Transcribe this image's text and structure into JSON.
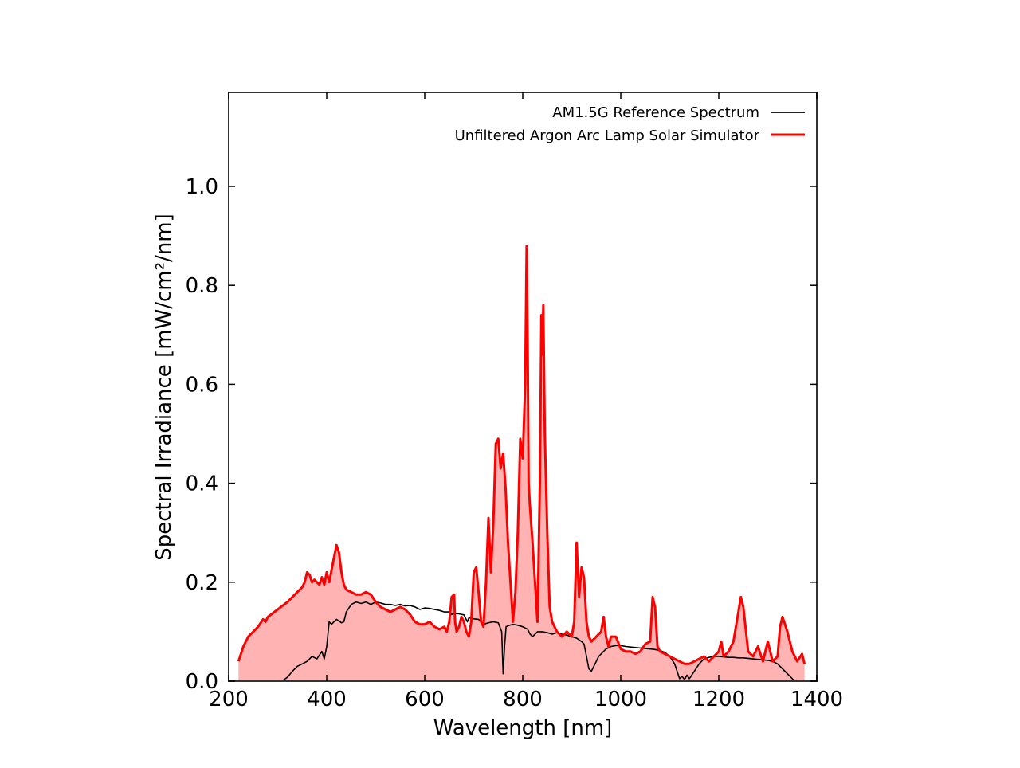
{
  "chart_data": {
    "type": "line",
    "title": "",
    "xlabel": "Wavelength [nm]",
    "ylabel": "Spectral Irradiance [mW/cm²/nm]",
    "xlim": [
      200,
      1400
    ],
    "ylim": [
      0,
      1.19
    ],
    "x_ticks": [
      200,
      400,
      600,
      800,
      1000,
      1200,
      1400
    ],
    "y_ticks": [
      0.0,
      0.2,
      0.4,
      0.6,
      0.8,
      1.0
    ],
    "x_tick_labels": [
      "200",
      "400",
      "600",
      "800",
      "1000",
      "1200",
      "1400"
    ],
    "y_tick_labels": [
      "0.0",
      "0.2",
      "0.4",
      "0.6",
      "0.8",
      "1.0"
    ],
    "grid": false,
    "legend_position": "top-right",
    "series": [
      {
        "name": "AM1.5G Reference Spectrum",
        "color": "#000000",
        "fill": false,
        "points": [
          [
            280,
            0.0
          ],
          [
            300,
            0.0
          ],
          [
            310,
            0.001
          ],
          [
            320,
            0.008
          ],
          [
            330,
            0.02
          ],
          [
            340,
            0.03
          ],
          [
            350,
            0.035
          ],
          [
            360,
            0.04
          ],
          [
            370,
            0.05
          ],
          [
            380,
            0.045
          ],
          [
            390,
            0.06
          ],
          [
            395,
            0.045
          ],
          [
            400,
            0.07
          ],
          [
            405,
            0.12
          ],
          [
            410,
            0.115
          ],
          [
            415,
            0.12
          ],
          [
            420,
            0.125
          ],
          [
            430,
            0.118
          ],
          [
            435,
            0.12
          ],
          [
            440,
            0.14
          ],
          [
            450,
            0.155
          ],
          [
            460,
            0.16
          ],
          [
            470,
            0.157
          ],
          [
            480,
            0.16
          ],
          [
            490,
            0.155
          ],
          [
            500,
            0.16
          ],
          [
            510,
            0.158
          ],
          [
            520,
            0.155
          ],
          [
            530,
            0.155
          ],
          [
            540,
            0.153
          ],
          [
            550,
            0.155
          ],
          [
            560,
            0.152
          ],
          [
            570,
            0.153
          ],
          [
            580,
            0.15
          ],
          [
            590,
            0.145
          ],
          [
            600,
            0.148
          ],
          [
            610,
            0.147
          ],
          [
            620,
            0.145
          ],
          [
            630,
            0.143
          ],
          [
            640,
            0.14
          ],
          [
            650,
            0.14
          ],
          [
            655,
            0.135
          ],
          [
            660,
            0.137
          ],
          [
            670,
            0.136
          ],
          [
            680,
            0.134
          ],
          [
            687,
            0.12
          ],
          [
            690,
            0.128
          ],
          [
            700,
            0.126
          ],
          [
            710,
            0.125
          ],
          [
            720,
            0.115
          ],
          [
            730,
            0.118
          ],
          [
            740,
            0.12
          ],
          [
            750,
            0.118
          ],
          [
            757,
            0.1
          ],
          [
            760,
            0.015
          ],
          [
            763,
            0.07
          ],
          [
            766,
            0.11
          ],
          [
            770,
            0.112
          ],
          [
            780,
            0.115
          ],
          [
            790,
            0.113
          ],
          [
            800,
            0.11
          ],
          [
            810,
            0.105
          ],
          [
            815,
            0.095
          ],
          [
            820,
            0.09
          ],
          [
            825,
            0.095
          ],
          [
            830,
            0.1
          ],
          [
            840,
            0.1
          ],
          [
            850,
            0.098
          ],
          [
            860,
            0.095
          ],
          [
            870,
            0.098
          ],
          [
            880,
            0.095
          ],
          [
            890,
            0.093
          ],
          [
            900,
            0.09
          ],
          [
            910,
            0.087
          ],
          [
            920,
            0.08
          ],
          [
            925,
            0.075
          ],
          [
            930,
            0.05
          ],
          [
            935,
            0.025
          ],
          [
            940,
            0.02
          ],
          [
            945,
            0.03
          ],
          [
            950,
            0.04
          ],
          [
            955,
            0.05
          ],
          [
            960,
            0.055
          ],
          [
            970,
            0.065
          ],
          [
            980,
            0.07
          ],
          [
            990,
            0.072
          ],
          [
            1000,
            0.072
          ],
          [
            1010,
            0.07
          ],
          [
            1020,
            0.069
          ],
          [
            1030,
            0.068
          ],
          [
            1040,
            0.067
          ],
          [
            1050,
            0.066
          ],
          [
            1060,
            0.065
          ],
          [
            1070,
            0.064
          ],
          [
            1080,
            0.062
          ],
          [
            1090,
            0.058
          ],
          [
            1100,
            0.05
          ],
          [
            1110,
            0.035
          ],
          [
            1115,
            0.02
          ],
          [
            1120,
            0.005
          ],
          [
            1125,
            0.01
          ],
          [
            1130,
            0.003
          ],
          [
            1135,
            0.012
          ],
          [
            1140,
            0.005
          ],
          [
            1150,
            0.02
          ],
          [
            1160,
            0.035
          ],
          [
            1170,
            0.045
          ],
          [
            1180,
            0.048
          ],
          [
            1190,
            0.05
          ],
          [
            1200,
            0.05
          ],
          [
            1210,
            0.049
          ],
          [
            1220,
            0.048
          ],
          [
            1230,
            0.048
          ],
          [
            1240,
            0.047
          ],
          [
            1250,
            0.047
          ],
          [
            1260,
            0.046
          ],
          [
            1270,
            0.045
          ],
          [
            1280,
            0.044
          ],
          [
            1290,
            0.043
          ],
          [
            1300,
            0.042
          ],
          [
            1310,
            0.04
          ],
          [
            1320,
            0.035
          ],
          [
            1330,
            0.025
          ],
          [
            1340,
            0.015
          ],
          [
            1350,
            0.005
          ],
          [
            1355,
            0.0
          ]
        ]
      },
      {
        "name": "Unfiltered Argon Arc Lamp Solar Simulator",
        "color": "#ff0000",
        "fill": true,
        "fill_color": "#ffb3b3",
        "points": [
          [
            220,
            0.04
          ],
          [
            230,
            0.07
          ],
          [
            240,
            0.09
          ],
          [
            250,
            0.1
          ],
          [
            260,
            0.11
          ],
          [
            270,
            0.125
          ],
          [
            275,
            0.12
          ],
          [
            280,
            0.13
          ],
          [
            300,
            0.145
          ],
          [
            320,
            0.16
          ],
          [
            340,
            0.18
          ],
          [
            350,
            0.19
          ],
          [
            355,
            0.2
          ],
          [
            360,
            0.22
          ],
          [
            365,
            0.215
          ],
          [
            370,
            0.2
          ],
          [
            375,
            0.205
          ],
          [
            380,
            0.2
          ],
          [
            385,
            0.195
          ],
          [
            390,
            0.21
          ],
          [
            395,
            0.195
          ],
          [
            400,
            0.22
          ],
          [
            405,
            0.2
          ],
          [
            410,
            0.225
          ],
          [
            415,
            0.25
          ],
          [
            420,
            0.275
          ],
          [
            425,
            0.26
          ],
          [
            430,
            0.22
          ],
          [
            435,
            0.195
          ],
          [
            440,
            0.185
          ],
          [
            450,
            0.18
          ],
          [
            460,
            0.175
          ],
          [
            470,
            0.175
          ],
          [
            480,
            0.18
          ],
          [
            490,
            0.175
          ],
          [
            500,
            0.16
          ],
          [
            510,
            0.15
          ],
          [
            520,
            0.145
          ],
          [
            530,
            0.14
          ],
          [
            540,
            0.145
          ],
          [
            550,
            0.15
          ],
          [
            560,
            0.145
          ],
          [
            570,
            0.135
          ],
          [
            580,
            0.12
          ],
          [
            590,
            0.115
          ],
          [
            600,
            0.115
          ],
          [
            610,
            0.12
          ],
          [
            620,
            0.11
          ],
          [
            630,
            0.105
          ],
          [
            640,
            0.11
          ],
          [
            645,
            0.1
          ],
          [
            650,
            0.12
          ],
          [
            655,
            0.17
          ],
          [
            660,
            0.175
          ],
          [
            662,
            0.12
          ],
          [
            665,
            0.1
          ],
          [
            670,
            0.11
          ],
          [
            675,
            0.13
          ],
          [
            680,
            0.12
          ],
          [
            685,
            0.1
          ],
          [
            690,
            0.09
          ],
          [
            695,
            0.12
          ],
          [
            700,
            0.22
          ],
          [
            705,
            0.23
          ],
          [
            710,
            0.18
          ],
          [
            715,
            0.12
          ],
          [
            720,
            0.11
          ],
          [
            725,
            0.2
          ],
          [
            730,
            0.33
          ],
          [
            735,
            0.22
          ],
          [
            740,
            0.32
          ],
          [
            745,
            0.48
          ],
          [
            750,
            0.49
          ],
          [
            755,
            0.43
          ],
          [
            760,
            0.46
          ],
          [
            765,
            0.39
          ],
          [
            770,
            0.28
          ],
          [
            775,
            0.2
          ],
          [
            780,
            0.12
          ],
          [
            785,
            0.18
          ],
          [
            790,
            0.3
          ],
          [
            795,
            0.49
          ],
          [
            800,
            0.45
          ],
          [
            805,
            0.6
          ],
          [
            808,
            0.88
          ],
          [
            810,
            0.7
          ],
          [
            812,
            0.4
          ],
          [
            815,
            0.35
          ],
          [
            820,
            0.28
          ],
          [
            825,
            0.2
          ],
          [
            830,
            0.12
          ],
          [
            835,
            0.4
          ],
          [
            838,
            0.74
          ],
          [
            840,
            0.66
          ],
          [
            842,
            0.76
          ],
          [
            845,
            0.5
          ],
          [
            850,
            0.3
          ],
          [
            855,
            0.15
          ],
          [
            860,
            0.12
          ],
          [
            870,
            0.1
          ],
          [
            880,
            0.09
          ],
          [
            890,
            0.1
          ],
          [
            900,
            0.09
          ],
          [
            905,
            0.12
          ],
          [
            910,
            0.28
          ],
          [
            915,
            0.17
          ],
          [
            920,
            0.23
          ],
          [
            925,
            0.21
          ],
          [
            930,
            0.12
          ],
          [
            935,
            0.09
          ],
          [
            940,
            0.08
          ],
          [
            950,
            0.09
          ],
          [
            960,
            0.1
          ],
          [
            965,
            0.13
          ],
          [
            970,
            0.09
          ],
          [
            975,
            0.07
          ],
          [
            980,
            0.09
          ],
          [
            990,
            0.09
          ],
          [
            1000,
            0.065
          ],
          [
            1010,
            0.06
          ],
          [
            1020,
            0.06
          ],
          [
            1030,
            0.055
          ],
          [
            1040,
            0.06
          ],
          [
            1050,
            0.075
          ],
          [
            1060,
            0.08
          ],
          [
            1065,
            0.17
          ],
          [
            1070,
            0.15
          ],
          [
            1075,
            0.07
          ],
          [
            1080,
            0.06
          ],
          [
            1090,
            0.055
          ],
          [
            1100,
            0.05
          ],
          [
            1110,
            0.045
          ],
          [
            1120,
            0.04
          ],
          [
            1130,
            0.035
          ],
          [
            1140,
            0.035
          ],
          [
            1150,
            0.04
          ],
          [
            1160,
            0.045
          ],
          [
            1170,
            0.05
          ],
          [
            1180,
            0.04
          ],
          [
            1190,
            0.05
          ],
          [
            1200,
            0.06
          ],
          [
            1205,
            0.08
          ],
          [
            1210,
            0.05
          ],
          [
            1220,
            0.06
          ],
          [
            1230,
            0.08
          ],
          [
            1240,
            0.14
          ],
          [
            1245,
            0.17
          ],
          [
            1250,
            0.15
          ],
          [
            1260,
            0.06
          ],
          [
            1270,
            0.05
          ],
          [
            1280,
            0.07
          ],
          [
            1290,
            0.04
          ],
          [
            1300,
            0.08
          ],
          [
            1305,
            0.06
          ],
          [
            1310,
            0.04
          ],
          [
            1320,
            0.05
          ],
          [
            1325,
            0.11
          ],
          [
            1330,
            0.13
          ],
          [
            1340,
            0.1
          ],
          [
            1350,
            0.06
          ],
          [
            1360,
            0.04
          ],
          [
            1370,
            0.055
          ],
          [
            1375,
            0.035
          ]
        ]
      }
    ]
  }
}
